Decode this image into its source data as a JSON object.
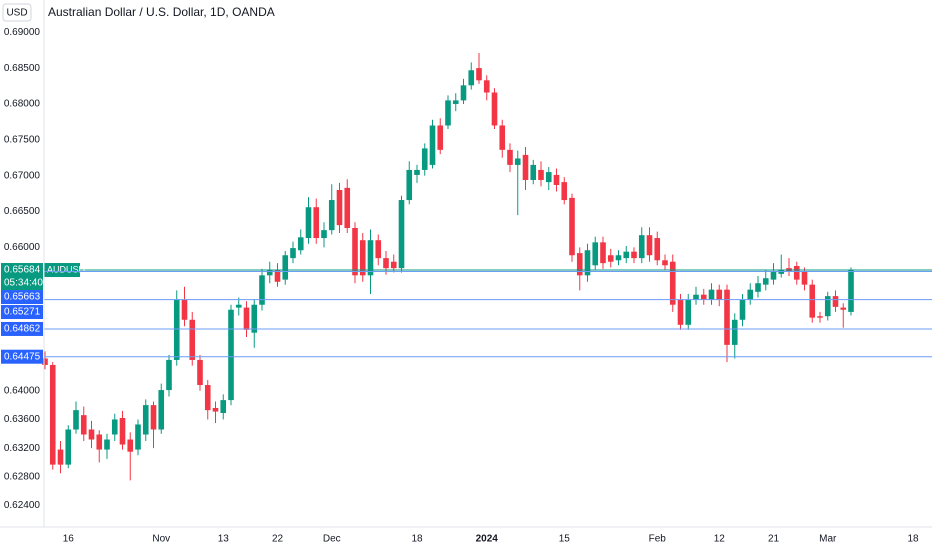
{
  "chart_data": {
    "type": "candlestick",
    "currency": "USD",
    "title": "Australian Dollar / U.S. Dollar, 1D, OANDA",
    "symbol": "AUDUSD",
    "countdown": "05:34:40",
    "up_color": "#089981",
    "down_color": "#f23645",
    "line_color": "#6b9cf6",
    "label_color": "#2962ff",
    "categories": [
      null,
      null,
      null,
      "16",
      null,
      null,
      null,
      null,
      null,
      null,
      null,
      null,
      null,
      null,
      null,
      "Nov",
      null,
      null,
      null,
      null,
      null,
      null,
      null,
      "13",
      null,
      null,
      null,
      null,
      null,
      null,
      "22",
      null,
      null,
      null,
      null,
      null,
      null,
      "Dec",
      null,
      null,
      null,
      null,
      null,
      null,
      null,
      null,
      null,
      null,
      "18",
      null,
      null,
      null,
      null,
      null,
      null,
      null,
      null,
      "2024",
      null,
      null,
      null,
      null,
      null,
      null,
      null,
      null,
      null,
      "15",
      null,
      null,
      null,
      null,
      null,
      null,
      null,
      null,
      null,
      null,
      null,
      "Feb",
      null,
      null,
      null,
      null,
      null,
      null,
      null,
      "12",
      null,
      null,
      null,
      null,
      null,
      null,
      "21",
      null,
      null,
      null,
      null,
      null,
      null,
      "Mar",
      null,
      null,
      null,
      null,
      null,
      null,
      null,
      null,
      null,
      null,
      "18"
    ],
    "open": [
      0.6445,
      0.6436,
      0.6318,
      0.6297,
      0.6346,
      0.6366,
      0.6346,
      0.6339,
      0.6318,
      0.6339,
      0.6362,
      0.6332,
      0.6318,
      0.6339,
      0.638,
      0.6346,
      0.6401,
      0.6443,
      0.6527,
      0.6499,
      0.6443,
      0.6408,
      0.6376,
      0.6369,
      0.6387,
      0.6516,
      0.6516,
      0.6481,
      0.652,
      0.6561,
      0.6568,
      0.6555,
      0.6585,
      0.6596,
      0.6613,
      0.6656,
      0.6613,
      0.6624,
      0.668,
      0.6683,
      0.6627,
      0.661,
      0.6561,
      0.661,
      0.6585,
      0.658,
      0.6571,
      0.6666,
      0.6701,
      0.6708,
      0.6715,
      0.677,
      0.677,
      0.68,
      0.6805,
      0.6826,
      0.685,
      0.6833,
      0.6816,
      0.677,
      0.6736,
      0.6715,
      0.6729,
      0.6694,
      0.6708,
      0.6691,
      0.6701,
      0.6691,
      0.6669,
      0.6592,
      0.6561,
      0.6575,
      0.6607,
      0.6589,
      0.6582,
      0.6585,
      0.6594,
      0.6585,
      0.6617,
      0.6613,
      0.6582,
      0.658,
      0.6527,
      0.6492,
      0.6527,
      0.6534,
      0.6527,
      0.6541,
      0.6541,
      0.6464,
      0.6499,
      0.6527,
      0.6538,
      0.6548,
      0.6555,
      0.6563,
      0.6571,
      0.6574,
      0.6566,
      0.6548,
      0.6504,
      0.6504,
      0.6532,
      0.6516,
      0.651,
      null,
      null,
      null,
      null,
      null,
      null,
      null,
      null
    ],
    "high": [
      0.6455,
      0.644,
      0.633,
      0.6352,
      0.6385,
      0.6378,
      0.6358,
      0.6345,
      0.634,
      0.6368,
      0.6372,
      0.6342,
      0.636,
      0.6388,
      0.6385,
      0.641,
      0.645,
      0.654,
      0.6545,
      0.651,
      0.645,
      0.6415,
      0.6385,
      0.6395,
      0.652,
      0.653,
      0.6525,
      0.6528,
      0.657,
      0.658,
      0.6578,
      0.6595,
      0.6608,
      0.6625,
      0.667,
      0.6668,
      0.6635,
      0.6688,
      0.669,
      0.6695,
      0.6635,
      0.662,
      0.6625,
      0.6618,
      0.6595,
      0.659,
      0.6672,
      0.672,
      0.6715,
      0.6745,
      0.6778,
      0.678,
      0.6812,
      0.6815,
      0.6835,
      0.6858,
      0.6871,
      0.684,
      0.6822,
      0.6778,
      0.6745,
      0.6735,
      0.674,
      0.6722,
      0.672,
      0.6712,
      0.671,
      0.6698,
      0.6675,
      0.66,
      0.6605,
      0.6615,
      0.6615,
      0.6598,
      0.6596,
      0.6602,
      0.66,
      0.6628,
      0.6628,
      0.6622,
      0.659,
      0.659,
      0.6535,
      0.6535,
      0.6545,
      0.6542,
      0.655,
      0.6548,
      0.6548,
      0.6508,
      0.6535,
      0.655,
      0.656,
      0.6568,
      0.6578,
      0.659,
      0.6585,
      0.658,
      0.6572,
      0.6555,
      0.651,
      0.6538,
      0.654,
      0.6522,
      0.6572,
      null,
      null,
      null,
      null,
      null,
      null,
      null,
      null
    ],
    "low": [
      0.643,
      0.629,
      0.6285,
      0.6292,
      0.634,
      0.633,
      0.632,
      0.63,
      0.6305,
      0.633,
      0.6318,
      0.6275,
      0.631,
      0.633,
      0.632,
      0.634,
      0.6392,
      0.6435,
      0.649,
      0.6435,
      0.64,
      0.636,
      0.6355,
      0.636,
      0.638,
      0.6505,
      0.6475,
      0.646,
      0.6512,
      0.655,
      0.6545,
      0.6548,
      0.6578,
      0.659,
      0.6605,
      0.6605,
      0.66,
      0.6618,
      0.662,
      0.662,
      0.655,
      0.6552,
      0.6535,
      0.6575,
      0.6562,
      0.6565,
      0.6565,
      0.666,
      0.669,
      0.67,
      0.671,
      0.673,
      0.6765,
      0.679,
      0.68,
      0.682,
      0.6828,
      0.6805,
      0.6765,
      0.6725,
      0.6705,
      0.6645,
      0.668,
      0.6688,
      0.6685,
      0.668,
      0.6678,
      0.666,
      0.658,
      0.654,
      0.6552,
      0.6568,
      0.657,
      0.6572,
      0.6575,
      0.6578,
      0.6578,
      0.6578,
      0.658,
      0.6575,
      0.6568,
      0.651,
      0.6485,
      0.6485,
      0.652,
      0.652,
      0.652,
      0.6518,
      0.644,
      0.6445,
      0.649,
      0.652,
      0.653,
      0.654,
      0.6548,
      0.6558,
      0.656,
      0.6548,
      0.654,
      0.6495,
      0.6495,
      0.6498,
      0.651,
      0.6488,
      0.6505,
      null,
      null,
      null,
      null,
      null,
      null,
      null,
      null
    ],
    "close": [
      0.6436,
      0.6297,
      0.6297,
      0.6346,
      0.6373,
      0.6339,
      0.6332,
      0.6318,
      0.6332,
      0.636,
      0.6325,
      0.6315,
      0.6353,
      0.638,
      0.6346,
      0.6401,
      0.6443,
      0.6527,
      0.6499,
      0.6443,
      0.6408,
      0.6373,
      0.6371,
      0.6387,
      0.6513,
      0.652,
      0.6485,
      0.652,
      0.6561,
      0.6568,
      0.6552,
      0.6589,
      0.6599,
      0.6614,
      0.6656,
      0.6613,
      0.6624,
      0.6666,
      0.6631,
      0.6627,
      0.6561,
      0.6561,
      0.661,
      0.6585,
      0.6571,
      0.6571,
      0.6666,
      0.6708,
      0.6708,
      0.6738,
      0.677,
      0.6736,
      0.6805,
      0.6805,
      0.6826,
      0.6847,
      0.6833,
      0.6816,
      0.677,
      0.6736,
      0.6715,
      0.6724,
      0.6694,
      0.6715,
      0.6694,
      0.6705,
      0.6687,
      0.6666,
      0.6589,
      0.6561,
      0.6596,
      0.6607,
      0.6578,
      0.658,
      0.6589,
      0.6594,
      0.6585,
      0.6617,
      0.6589,
      0.6582,
      0.6575,
      0.652,
      0.6492,
      0.6527,
      0.6534,
      0.6527,
      0.6541,
      0.6527,
      0.6464,
      0.6499,
      0.6527,
      0.6541,
      0.655,
      0.6557,
      0.6566,
      0.6568,
      0.6566,
      0.6555,
      0.6548,
      0.6502,
      0.6502,
      0.6532,
      0.6517,
      0.6513,
      0.6568,
      null,
      null,
      null,
      null,
      null,
      null,
      null,
      null
    ],
    "ylim": [
      0.621,
      0.6945
    ],
    "yticks": [
      {
        "value": 0.624,
        "label": "0.62400"
      },
      {
        "value": 0.628,
        "label": "0.62800"
      },
      {
        "value": 0.632,
        "label": "0.63200"
      },
      {
        "value": 0.636,
        "label": "0.63600"
      },
      {
        "value": 0.64,
        "label": "0.64000"
      },
      {
        "value": 0.66,
        "label": "0.66000"
      },
      {
        "value": 0.665,
        "label": "0.66500"
      },
      {
        "value": 0.67,
        "label": "0.67000"
      },
      {
        "value": 0.675,
        "label": "0.67500"
      },
      {
        "value": 0.68,
        "label": "0.68000"
      },
      {
        "value": 0.685,
        "label": "0.68500"
      },
      {
        "value": 0.69,
        "label": "0.69000"
      }
    ],
    "price_lines": [
      0.65684,
      0.65663,
      0.65271,
      0.64862,
      0.64475
    ],
    "grid": false
  }
}
